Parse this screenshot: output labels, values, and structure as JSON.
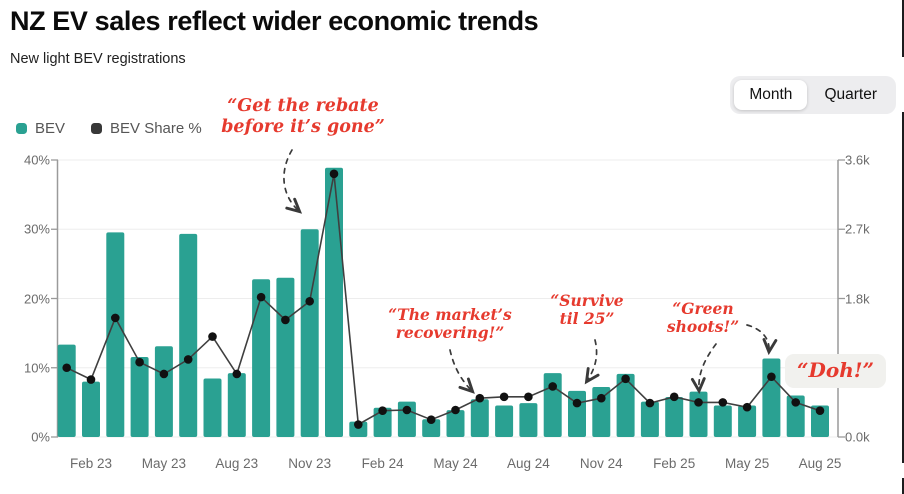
{
  "header": {
    "title": "NZ EV sales reflect wider economic trends",
    "subtitle": "New light BEV registrations"
  },
  "toolbar": {
    "period_toggle": {
      "options": [
        "Month",
        "Quarter"
      ],
      "selected": "Month"
    }
  },
  "legend": {
    "bev": {
      "label": "BEV",
      "color": "#2aa192"
    },
    "share": {
      "label": "BEV Share %",
      "color": "#383838"
    }
  },
  "colors": {
    "bar": "#2aa192",
    "line": "#3f3f3f",
    "dot": "#111111",
    "annotation_red": "#e63a2e",
    "grid": "#ededed",
    "axis": "#9a9a9a",
    "tick_text": "#6b6b6b"
  },
  "chart_data": {
    "type": "combo bar+line",
    "categories": [
      "Jan 23",
      "Feb 23",
      "Mar 23",
      "Apr 23",
      "May 23",
      "Jun 23",
      "Jul 23",
      "Aug 23",
      "Sep 23",
      "Oct 23",
      "Nov 23",
      "Dec 23",
      "Jan 24",
      "Feb 24",
      "Mar 24",
      "Apr 24",
      "May 24",
      "Jun 24",
      "Jul 24",
      "Aug 24",
      "Sep 24",
      "Oct 24",
      "Nov 24",
      "Dec 24",
      "Jan 25",
      "Feb 25",
      "Mar 25",
      "Apr 25",
      "May 25",
      "Jun 25",
      "Jul 25",
      "Aug 25"
    ],
    "series": [
      {
        "name": "BEV",
        "type": "bar",
        "axis": "right",
        "unit": "thousand registrations",
        "values": [
          1.2,
          0.72,
          2.66,
          1.04,
          1.18,
          2.64,
          0.76,
          0.83,
          2.05,
          2.07,
          2.7,
          3.5,
          0.2,
          0.38,
          0.46,
          0.23,
          0.35,
          0.49,
          0.41,
          0.44,
          0.83,
          0.6,
          0.65,
          0.82,
          0.46,
          0.52,
          0.59,
          0.41,
          0.41,
          1.02,
          0.54,
          0.41
        ]
      },
      {
        "name": "BEV Share %",
        "type": "line",
        "axis": "left",
        "unit": "%",
        "values": [
          10.0,
          8.3,
          17.2,
          10.8,
          9.1,
          11.2,
          14.5,
          9.1,
          20.2,
          16.9,
          19.6,
          38.0,
          1.8,
          3.8,
          3.9,
          2.5,
          3.9,
          5.6,
          5.8,
          5.8,
          7.3,
          4.9,
          5.6,
          8.4,
          4.9,
          5.8,
          5.0,
          5.0,
          4.3,
          8.7,
          5.0,
          3.8
        ]
      }
    ],
    "y_left": {
      "range": [
        0,
        40
      ],
      "ticks": [
        {
          "label": "40%",
          "value": 40
        },
        {
          "label": "30%",
          "value": 30
        },
        {
          "label": "20%",
          "value": 20
        },
        {
          "label": "10%",
          "value": 10
        },
        {
          "label": "0%",
          "value": 0
        }
      ]
    },
    "y_right": {
      "range": [
        0,
        3.6
      ],
      "ticks": [
        {
          "label": "3.6k",
          "value": 3.6
        },
        {
          "label": "2.7k",
          "value": 2.7
        },
        {
          "label": "1.8k",
          "value": 1.8
        },
        {
          "label": "0.0k",
          "value": 0
        }
      ]
    },
    "x_ticks": [
      {
        "label": "Feb 23",
        "index": 1
      },
      {
        "label": "May 23",
        "index": 4
      },
      {
        "label": "Aug 23",
        "index": 7
      },
      {
        "label": "Nov 23",
        "index": 10
      },
      {
        "label": "Feb 24",
        "index": 13
      },
      {
        "label": "May 24",
        "index": 16
      },
      {
        "label": "Aug 24",
        "index": 19
      },
      {
        "label": "Nov 24",
        "index": 22
      },
      {
        "label": "Feb 25",
        "index": 25
      },
      {
        "label": "May 25",
        "index": 28
      },
      {
        "label": "Aug 25",
        "index": 31
      }
    ],
    "annotations": {
      "rebate": {
        "text": "“Get the rebate\nbefore it’s gone”"
      },
      "recovering": {
        "text": "“The market’s\nrecovering!”"
      },
      "survive": {
        "text": "“Survive\ntil 25”"
      },
      "green": {
        "text": "“Green\nshoots!”"
      },
      "doh": {
        "text": "“Doh!”"
      }
    },
    "grid": true,
    "legend_position": "top-left"
  }
}
